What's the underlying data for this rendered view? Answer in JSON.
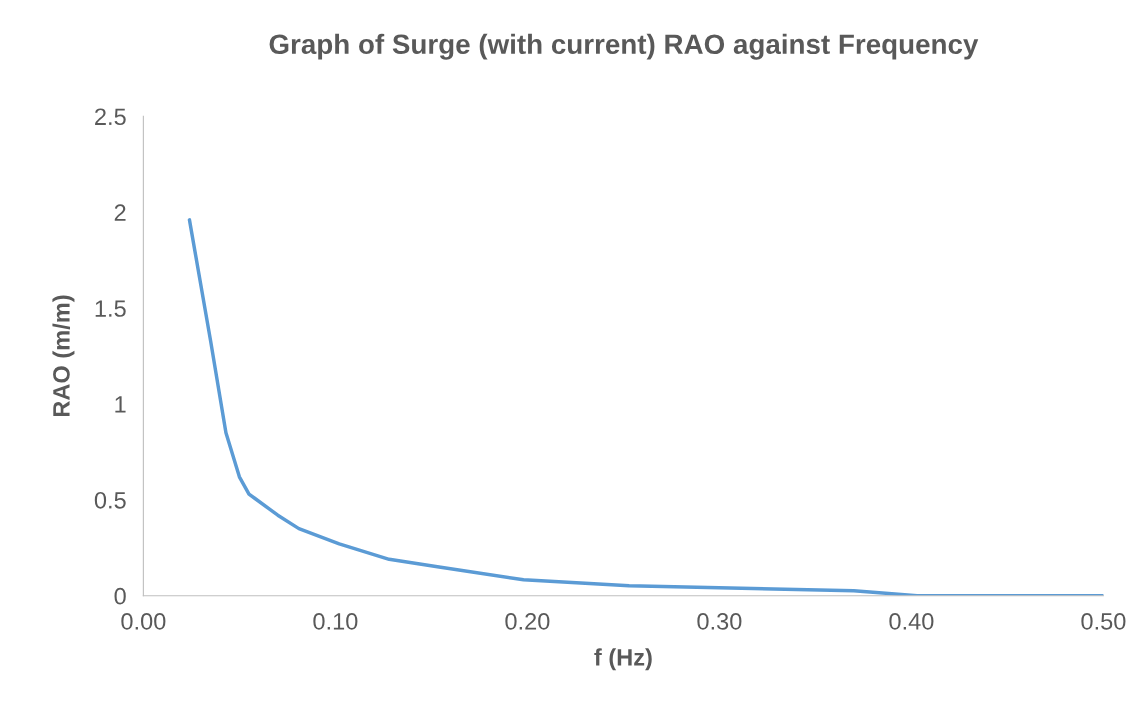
{
  "chart_data": {
    "type": "line",
    "title": "Graph of Surge (with current) RAO against Frequency",
    "xlabel": "f (Hz)",
    "ylabel": "RAO (m/m)",
    "x": [
      0.024,
      0.035,
      0.043,
      0.05,
      0.055,
      0.07,
      0.081,
      0.102,
      0.128,
      0.154,
      0.198,
      0.253,
      0.37,
      0.403,
      0.5
    ],
    "series": [
      {
        "color": "#5b9bd5",
        "values": [
          1.96,
          1.33,
          0.85,
          0.62,
          0.53,
          0.42,
          0.35,
          0.27,
          0.19,
          0.15,
          0.083,
          0.052,
          0.026,
          0.0,
          0.0
        ]
      }
    ],
    "xlim": [
      0,
      0.5
    ],
    "ylim": [
      0,
      2.5
    ],
    "xticks": [
      {
        "value": 0,
        "label": "0.00"
      },
      {
        "value": 0.1,
        "label": "0.10"
      },
      {
        "value": 0.2,
        "label": "0.20"
      },
      {
        "value": 0.3,
        "label": "0.30"
      },
      {
        "value": 0.4,
        "label": "0.40"
      },
      {
        "value": 0.5,
        "label": "0.50"
      }
    ],
    "yticks": [
      0,
      0.5,
      1,
      1.5,
      2,
      2.5
    ],
    "grid": false,
    "legend": false,
    "marker": "none",
    "line_style": "solid"
  }
}
